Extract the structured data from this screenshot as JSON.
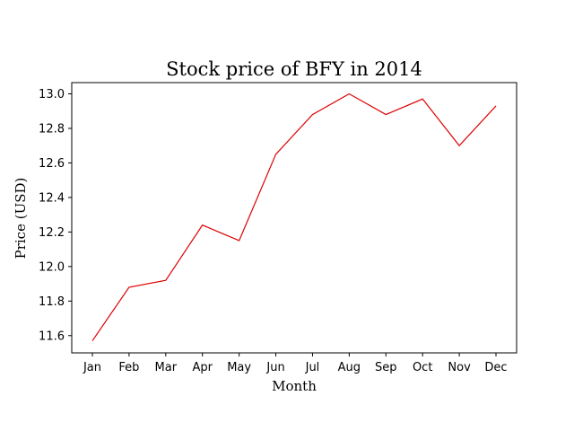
{
  "chart_data": {
    "type": "line",
    "title": "Stock price of BFY in 2014",
    "xlabel": "Month",
    "ylabel": "Price (USD)",
    "categories": [
      "Jan",
      "Feb",
      "Mar",
      "Apr",
      "May",
      "Jun",
      "Jul",
      "Aug",
      "Sep",
      "Oct",
      "Nov",
      "Dec"
    ],
    "series": [
      {
        "values": [
          11.57,
          11.88,
          11.92,
          12.24,
          12.15,
          12.65,
          12.88,
          13.0,
          12.88,
          12.97,
          12.7,
          12.93
        ],
        "color": "#dd0000"
      }
    ],
    "ylim": [
      11.5,
      13.065
    ],
    "yticks": [
      11.6,
      11.8,
      12.0,
      12.2,
      12.4,
      12.6,
      12.8,
      13.0
    ],
    "ytick_labels": [
      "11.6",
      "11.8",
      "12.0",
      "12.2",
      "12.4",
      "12.6",
      "12.8",
      "13.0"
    ],
    "grid": false,
    "legend": "none"
  }
}
